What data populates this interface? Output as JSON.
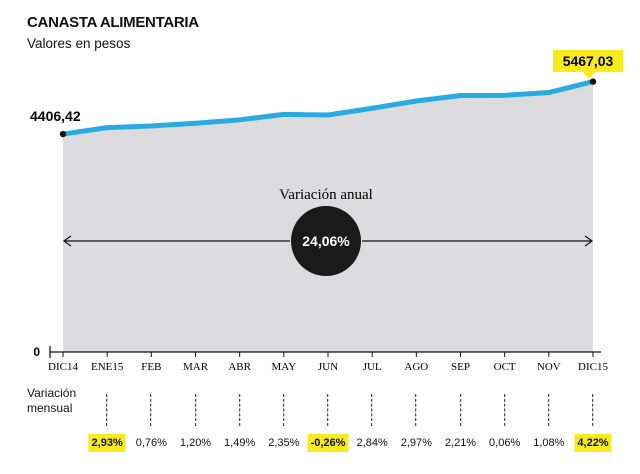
{
  "title": "CANASTA ALIMENTARIA",
  "subtitle": "Valores en pesos",
  "colors": {
    "line": "#29abe2",
    "area": "#dcdcde",
    "highlight": "#f7ea1d",
    "circle": "#1a1a1a"
  },
  "annual_label": "Variación anual",
  "annual_value": "24,06%",
  "start_label": "4406,42",
  "end_label": "5467,03",
  "monthly_label": "Variación mensual",
  "monthly": [
    {
      "value": "2,93%",
      "highlight": true
    },
    {
      "value": "0,76%",
      "highlight": false
    },
    {
      "value": "1,20%",
      "highlight": false
    },
    {
      "value": "1,49%",
      "highlight": false
    },
    {
      "value": "2,35%",
      "highlight": false
    },
    {
      "value": "-0,26%",
      "highlight": true
    },
    {
      "value": "2,84%",
      "highlight": false
    },
    {
      "value": "2,97%",
      "highlight": false
    },
    {
      "value": "2,21%",
      "highlight": false
    },
    {
      "value": "0,06%",
      "highlight": false
    },
    {
      "value": "1,08%",
      "highlight": false
    },
    {
      "value": "4,22%",
      "highlight": true
    }
  ],
  "chart_data": {
    "type": "area",
    "title": "CANASTA ALIMENTARIA",
    "subtitle": "Valores en pesos",
    "categories": [
      "DIC14",
      "ENE15",
      "FEB",
      "MAR",
      "ABR",
      "MAY",
      "JUN",
      "JUL",
      "AGO",
      "SEP",
      "OCT",
      "NOV",
      "DIC15"
    ],
    "values": [
      4406.42,
      4535.5,
      4570.0,
      4624.9,
      4693.8,
      4804.1,
      4791.6,
      4927.7,
      5074.1,
      5186.2,
      5189.3,
      5245.4,
      5467.03
    ],
    "ylim": [
      0,
      5600
    ],
    "y_ticks": [
      "0"
    ],
    "grid": false
  }
}
